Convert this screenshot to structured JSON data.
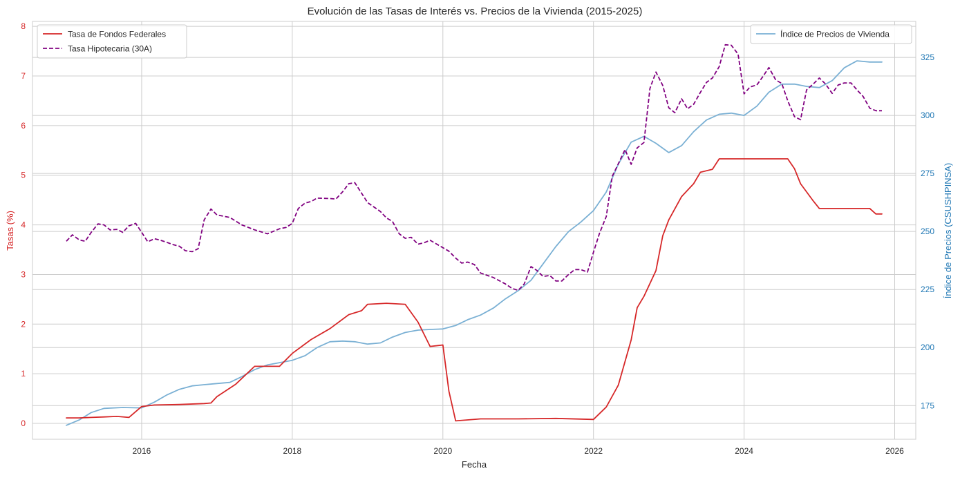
{
  "chart_data": {
    "type": "line",
    "title": "Evolución de las Tasas de Interés vs. Precios de la Vivienda (2015-2025)",
    "xlabel": "Fecha",
    "ylabel_left": "Tasas (%)",
    "ylabel_right": "Índice de Precios (CSUSHPINSA)",
    "xlim": [
      2014.55,
      2026.28
    ],
    "ylim_left": [
      -0.32,
      8.1
    ],
    "ylim_right": [
      160.5,
      340.5
    ],
    "x_ticks": [
      2016,
      2018,
      2020,
      2022,
      2024,
      2026
    ],
    "x_tick_labels": [
      "2016",
      "2018",
      "2020",
      "2022",
      "2024",
      "2026"
    ],
    "y_left_ticks": [
      0,
      1,
      2,
      3,
      4,
      5,
      6,
      7,
      8
    ],
    "y_left_tick_labels": [
      "0",
      "1",
      "2",
      "3",
      "4",
      "5",
      "6",
      "7",
      "8"
    ],
    "y_right_ticks": [
      175,
      200,
      225,
      250,
      275,
      300,
      325
    ],
    "y_right_tick_labels": [
      "175",
      "200",
      "225",
      "250",
      "275",
      "300",
      "325"
    ],
    "grid": true,
    "colors": {
      "fed": "#d62728",
      "mortgage": "#800080",
      "price": "#7ab0d4",
      "left_axis": "#d62728",
      "right_axis": "#1f77b4",
      "grid": "#cccccc",
      "frame": "#cccccc"
    },
    "legend_left": {
      "position": "top-left",
      "entries": [
        {
          "label": "Tasa de Fondos Federales",
          "series": "fed"
        },
        {
          "label": "Tasa Hipotecaria (30A)",
          "series": "mortgage"
        }
      ]
    },
    "legend_right": {
      "position": "top-right",
      "entries": [
        {
          "label": "Índice de Precios de Vivienda",
          "series": "price"
        }
      ]
    },
    "series": [
      {
        "key": "fed",
        "name": "Tasa de Fondos Federales",
        "axis": "left",
        "style": "solid",
        "points": [
          [
            2015.0,
            0.11
          ],
          [
            2015.17,
            0.11
          ],
          [
            2015.33,
            0.12
          ],
          [
            2015.5,
            0.13
          ],
          [
            2015.67,
            0.14
          ],
          [
            2015.83,
            0.12
          ],
          [
            2016.0,
            0.34
          ],
          [
            2016.17,
            0.37
          ],
          [
            2016.5,
            0.38
          ],
          [
            2016.83,
            0.4
          ],
          [
            2016.92,
            0.41
          ],
          [
            2017.0,
            0.54
          ],
          [
            2017.25,
            0.79
          ],
          [
            2017.5,
            1.15
          ],
          [
            2017.83,
            1.15
          ],
          [
            2018.0,
            1.41
          ],
          [
            2018.25,
            1.69
          ],
          [
            2018.5,
            1.91
          ],
          [
            2018.75,
            2.19
          ],
          [
            2018.92,
            2.27
          ],
          [
            2019.0,
            2.4
          ],
          [
            2019.25,
            2.42
          ],
          [
            2019.5,
            2.4
          ],
          [
            2019.67,
            2.04
          ],
          [
            2019.83,
            1.55
          ],
          [
            2020.0,
            1.58
          ],
          [
            2020.08,
            0.65
          ],
          [
            2020.17,
            0.05
          ],
          [
            2020.5,
            0.09
          ],
          [
            2021.0,
            0.09
          ],
          [
            2021.5,
            0.1
          ],
          [
            2022.0,
            0.08
          ],
          [
            2022.17,
            0.33
          ],
          [
            2022.33,
            0.77
          ],
          [
            2022.5,
            1.68
          ],
          [
            2022.58,
            2.33
          ],
          [
            2022.67,
            2.56
          ],
          [
            2022.83,
            3.08
          ],
          [
            2022.92,
            3.78
          ],
          [
            2023.0,
            4.1
          ],
          [
            2023.17,
            4.57
          ],
          [
            2023.33,
            4.83
          ],
          [
            2023.42,
            5.06
          ],
          [
            2023.58,
            5.12
          ],
          [
            2023.67,
            5.33
          ],
          [
            2024.0,
            5.33
          ],
          [
            2024.58,
            5.33
          ],
          [
            2024.67,
            5.13
          ],
          [
            2024.75,
            4.83
          ],
          [
            2024.92,
            4.48
          ],
          [
            2025.0,
            4.33
          ],
          [
            2025.5,
            4.33
          ],
          [
            2025.67,
            4.33
          ],
          [
            2025.75,
            4.22
          ],
          [
            2025.83,
            4.22
          ]
        ]
      },
      {
        "key": "mortgage",
        "name": "Tasa Hipotecaria (30A)",
        "axis": "left",
        "style": "dashed",
        "points": [
          [
            2015.0,
            3.67
          ],
          [
            2015.08,
            3.8
          ],
          [
            2015.17,
            3.7
          ],
          [
            2015.25,
            3.67
          ],
          [
            2015.33,
            3.85
          ],
          [
            2015.42,
            4.02
          ],
          [
            2015.5,
            4.0
          ],
          [
            2015.58,
            3.9
          ],
          [
            2015.67,
            3.91
          ],
          [
            2015.75,
            3.85
          ],
          [
            2015.83,
            3.98
          ],
          [
            2015.92,
            4.03
          ],
          [
            2016.0,
            3.85
          ],
          [
            2016.08,
            3.66
          ],
          [
            2016.17,
            3.72
          ],
          [
            2016.25,
            3.69
          ],
          [
            2016.33,
            3.65
          ],
          [
            2016.42,
            3.6
          ],
          [
            2016.5,
            3.57
          ],
          [
            2016.58,
            3.48
          ],
          [
            2016.67,
            3.46
          ],
          [
            2016.75,
            3.52
          ],
          [
            2016.83,
            4.1
          ],
          [
            2016.92,
            4.32
          ],
          [
            2017.0,
            4.2
          ],
          [
            2017.17,
            4.15
          ],
          [
            2017.33,
            4.0
          ],
          [
            2017.5,
            3.9
          ],
          [
            2017.67,
            3.82
          ],
          [
            2017.83,
            3.92
          ],
          [
            2017.92,
            3.95
          ],
          [
            2018.0,
            4.03
          ],
          [
            2018.08,
            4.33
          ],
          [
            2018.17,
            4.44
          ],
          [
            2018.25,
            4.47
          ],
          [
            2018.33,
            4.54
          ],
          [
            2018.5,
            4.53
          ],
          [
            2018.58,
            4.52
          ],
          [
            2018.67,
            4.67
          ],
          [
            2018.75,
            4.83
          ],
          [
            2018.83,
            4.85
          ],
          [
            2018.92,
            4.64
          ],
          [
            2019.0,
            4.45
          ],
          [
            2019.17,
            4.27
          ],
          [
            2019.25,
            4.14
          ],
          [
            2019.33,
            4.07
          ],
          [
            2019.42,
            3.82
          ],
          [
            2019.5,
            3.73
          ],
          [
            2019.58,
            3.75
          ],
          [
            2019.67,
            3.61
          ],
          [
            2019.75,
            3.64
          ],
          [
            2019.83,
            3.69
          ],
          [
            2020.0,
            3.54
          ],
          [
            2020.08,
            3.47
          ],
          [
            2020.17,
            3.33
          ],
          [
            2020.25,
            3.23
          ],
          [
            2020.33,
            3.25
          ],
          [
            2020.42,
            3.2
          ],
          [
            2020.5,
            3.03
          ],
          [
            2020.67,
            2.94
          ],
          [
            2020.83,
            2.81
          ],
          [
            2020.92,
            2.72
          ],
          [
            2021.0,
            2.68
          ],
          [
            2021.08,
            2.81
          ],
          [
            2021.17,
            3.16
          ],
          [
            2021.25,
            3.08
          ],
          [
            2021.33,
            2.96
          ],
          [
            2021.42,
            2.98
          ],
          [
            2021.5,
            2.87
          ],
          [
            2021.58,
            2.87
          ],
          [
            2021.67,
            3.0
          ],
          [
            2021.75,
            3.1
          ],
          [
            2021.83,
            3.1
          ],
          [
            2021.92,
            3.05
          ],
          [
            2022.0,
            3.45
          ],
          [
            2022.08,
            3.83
          ],
          [
            2022.17,
            4.17
          ],
          [
            2022.25,
            4.98
          ],
          [
            2022.33,
            5.23
          ],
          [
            2022.42,
            5.52
          ],
          [
            2022.5,
            5.22
          ],
          [
            2022.58,
            5.55
          ],
          [
            2022.67,
            5.66
          ],
          [
            2022.75,
            6.75
          ],
          [
            2022.83,
            7.08
          ],
          [
            2022.92,
            6.81
          ],
          [
            2023.0,
            6.36
          ],
          [
            2023.08,
            6.26
          ],
          [
            2023.17,
            6.54
          ],
          [
            2023.25,
            6.34
          ],
          [
            2023.33,
            6.43
          ],
          [
            2023.42,
            6.67
          ],
          [
            2023.5,
            6.87
          ],
          [
            2023.58,
            6.96
          ],
          [
            2023.67,
            7.19
          ],
          [
            2023.75,
            7.63
          ],
          [
            2023.83,
            7.62
          ],
          [
            2023.92,
            7.44
          ],
          [
            2024.0,
            6.64
          ],
          [
            2024.08,
            6.78
          ],
          [
            2024.17,
            6.82
          ],
          [
            2024.25,
            6.99
          ],
          [
            2024.33,
            7.17
          ],
          [
            2024.42,
            6.92
          ],
          [
            2024.5,
            6.85
          ],
          [
            2024.58,
            6.5
          ],
          [
            2024.67,
            6.18
          ],
          [
            2024.75,
            6.12
          ],
          [
            2024.83,
            6.72
          ],
          [
            2024.92,
            6.84
          ],
          [
            2025.0,
            6.96
          ],
          [
            2025.08,
            6.84
          ],
          [
            2025.17,
            6.65
          ],
          [
            2025.25,
            6.82
          ],
          [
            2025.33,
            6.86
          ],
          [
            2025.42,
            6.86
          ],
          [
            2025.5,
            6.72
          ],
          [
            2025.58,
            6.59
          ],
          [
            2025.67,
            6.35
          ],
          [
            2025.75,
            6.3
          ],
          [
            2025.83,
            6.3
          ]
        ]
      },
      {
        "key": "price",
        "name": "Índice de Precios de Vivienda",
        "axis": "right",
        "style": "solid",
        "points": [
          [
            2015.0,
            166.5
          ],
          [
            2015.17,
            168.8
          ],
          [
            2015.33,
            172.0
          ],
          [
            2015.5,
            173.8
          ],
          [
            2015.75,
            174.2
          ],
          [
            2016.0,
            174.0
          ],
          [
            2016.17,
            176.5
          ],
          [
            2016.33,
            179.5
          ],
          [
            2016.5,
            182.0
          ],
          [
            2016.67,
            183.5
          ],
          [
            2016.83,
            184.0
          ],
          [
            2017.0,
            184.5
          ],
          [
            2017.17,
            185.0
          ],
          [
            2017.33,
            187.5
          ],
          [
            2017.5,
            190.5
          ],
          [
            2017.67,
            192.5
          ],
          [
            2017.83,
            193.5
          ],
          [
            2018.0,
            194.5
          ],
          [
            2018.17,
            196.5
          ],
          [
            2018.33,
            200.0
          ],
          [
            2018.5,
            202.5
          ],
          [
            2018.67,
            202.8
          ],
          [
            2018.83,
            202.5
          ],
          [
            2019.0,
            201.5
          ],
          [
            2019.17,
            202.0
          ],
          [
            2019.33,
            204.5
          ],
          [
            2019.5,
            206.5
          ],
          [
            2019.67,
            207.5
          ],
          [
            2019.83,
            207.8
          ],
          [
            2020.0,
            208.0
          ],
          [
            2020.17,
            209.5
          ],
          [
            2020.33,
            212.0
          ],
          [
            2020.5,
            214.0
          ],
          [
            2020.67,
            217.0
          ],
          [
            2020.83,
            221.0
          ],
          [
            2021.0,
            224.5
          ],
          [
            2021.17,
            229.0
          ],
          [
            2021.33,
            236.0
          ],
          [
            2021.5,
            243.5
          ],
          [
            2021.67,
            250.0
          ],
          [
            2021.83,
            254.0
          ],
          [
            2022.0,
            259.0
          ],
          [
            2022.17,
            267.0
          ],
          [
            2022.33,
            279.0
          ],
          [
            2022.5,
            288.5
          ],
          [
            2022.67,
            291.0
          ],
          [
            2022.83,
            288.0
          ],
          [
            2023.0,
            284.0
          ],
          [
            2023.17,
            287.0
          ],
          [
            2023.33,
            293.0
          ],
          [
            2023.5,
            298.0
          ],
          [
            2023.67,
            300.5
          ],
          [
            2023.83,
            301.0
          ],
          [
            2024.0,
            300.0
          ],
          [
            2024.17,
            304.0
          ],
          [
            2024.33,
            310.0
          ],
          [
            2024.5,
            313.5
          ],
          [
            2024.67,
            313.5
          ],
          [
            2024.83,
            312.5
          ],
          [
            2025.0,
            312.0
          ],
          [
            2025.17,
            315.0
          ],
          [
            2025.33,
            320.5
          ],
          [
            2025.5,
            323.5
          ],
          [
            2025.67,
            323.0
          ],
          [
            2025.83,
            323.0
          ]
        ]
      }
    ]
  }
}
